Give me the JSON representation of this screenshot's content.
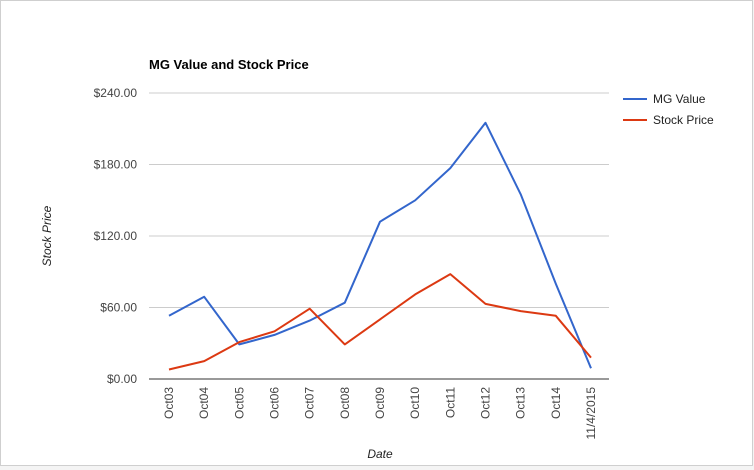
{
  "chart_data": {
    "type": "line",
    "title": "MG Value and Stock Price",
    "xlabel": "Date",
    "ylabel": "Stock Price",
    "categories": [
      "Oct03",
      "Oct04",
      "Oct05",
      "Oct06",
      "Oct07",
      "Oct08",
      "Oct09",
      "Oct10",
      "Oct11",
      "Oct12",
      "Oct13",
      "Oct14",
      "11/4/2015"
    ],
    "y_ticks": [
      "$0.00",
      "$60.00",
      "$120.00",
      "$180.00",
      "$240.00"
    ],
    "y_tick_values": [
      0,
      60,
      120,
      180,
      240
    ],
    "ylim": [
      0,
      240
    ],
    "grid": true,
    "legend_position": "right",
    "series": [
      {
        "name": "MG Value",
        "color": "#3366cc",
        "values": [
          53,
          69,
          29,
          37,
          49,
          64,
          132,
          150,
          177,
          215,
          155,
          80,
          9
        ]
      },
      {
        "name": "Stock Price",
        "color": "#dc3912",
        "values": [
          8,
          15,
          31,
          40,
          59,
          29,
          50,
          71,
          88,
          63,
          57,
          53,
          18
        ]
      }
    ]
  }
}
